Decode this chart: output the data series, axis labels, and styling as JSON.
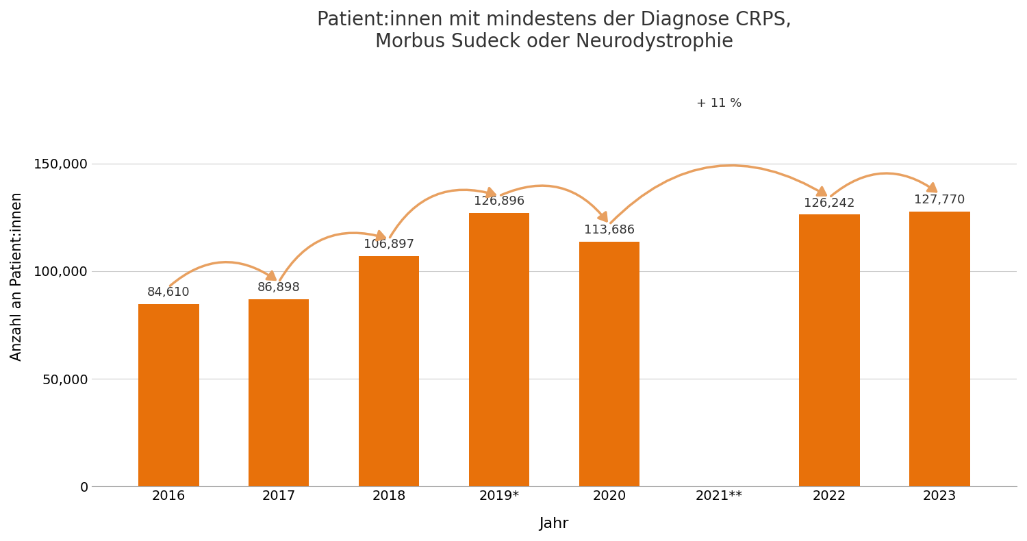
{
  "title": "Patient:innen mit mindestens der Diagnose CRPS,\nMorbus Sudeck oder Neurodystrophie",
  "xlabel": "Jahr",
  "ylabel": "Anzahl an Patient:innen",
  "categories": [
    "2016",
    "2017",
    "2018",
    "2019*",
    "2020",
    "2021**",
    "2022",
    "2023"
  ],
  "values": [
    84610,
    86898,
    106897,
    126896,
    113686,
    null,
    126242,
    127770
  ],
  "bar_color": "#E8710A",
  "background_color": "#FFFFFF",
  "ylim": [
    0,
    195000
  ],
  "yticks": [
    0,
    50000,
    100000,
    150000
  ],
  "bar_labels": [
    "84,610",
    "86,898",
    "106,897",
    "126,896",
    "113,686",
    "",
    "126,242",
    "127,770"
  ],
  "arrow_color": "#E8A060",
  "title_fontsize": 20,
  "label_fontsize": 15,
  "tick_fontsize": 14,
  "bar_label_fontsize": 13,
  "plus11_label": "+ 11 %"
}
